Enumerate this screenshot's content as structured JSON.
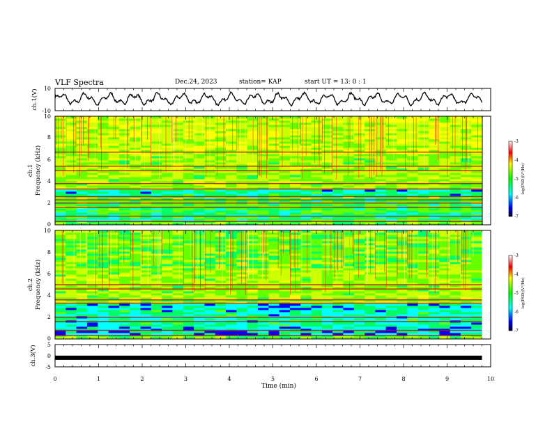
{
  "header": {
    "title": "VLF Spectra",
    "date": "Dec.24, 2023",
    "station": "station= KAP",
    "start": "start  UT =  13: 0  : 1"
  },
  "chart_data": [
    {
      "type": "line",
      "ylabel": "ch.1(V)",
      "ylim": [
        -10,
        10
      ],
      "yticks": [
        "10",
        "-10"
      ],
      "xlim": [
        0,
        10
      ],
      "description_series": "waveform ch.1",
      "series": [
        {
          "values_range": [
            -6,
            7
          ]
        }
      ]
    },
    {
      "type": "heatmap",
      "ylabel_top": "ch.1",
      "ylabel": "Frequency  (kHz)",
      "yticks": [
        "0",
        "2",
        "4",
        "6",
        "8",
        "10"
      ],
      "ylim": [
        0,
        10
      ],
      "xlim": [
        0,
        10
      ],
      "colorbar": {
        "label": "log(PSD)(V²/Hz)",
        "ticks": [
          "-3",
          "-4",
          "-5",
          "-6",
          "-7"
        ],
        "range": [
          -7,
          -3
        ]
      },
      "lines_khz": [
        0.3,
        0.8,
        1.6,
        2.0,
        2.3,
        2.6,
        3.3,
        3.8,
        5.0,
        5.4,
        6.7
      ]
    },
    {
      "type": "heatmap",
      "ylabel_top": "ch.2",
      "ylabel": "Frequency  (kHz)",
      "yticks": [
        "0",
        "2",
        "4",
        "6",
        "8",
        "10"
      ],
      "ylim": [
        0,
        10
      ],
      "xlim": [
        0,
        10
      ],
      "colorbar": {
        "label": "log(PSD)(V²/Hz)",
        "ticks": [
          "-3",
          "-4",
          "-5",
          "-6",
          "-7"
        ],
        "range": [
          -7,
          -3
        ]
      },
      "lines_khz": [
        0.3,
        0.8,
        1.6,
        2.0,
        3.3,
        3.6,
        4.6,
        5.0
      ]
    },
    {
      "type": "line",
      "ylabel": "ch.3(V)",
      "ylim": [
        -5,
        5
      ],
      "yticks": [
        "5",
        "0",
        "-5"
      ],
      "xlim": [
        0,
        10
      ],
      "xlabel": "Time  (min)",
      "xticks": [
        "0",
        "1",
        "2",
        "3",
        "4",
        "5",
        "6",
        "7",
        "8",
        "9",
        "10"
      ],
      "series": [
        {
          "level": -0.9
        }
      ]
    }
  ]
}
